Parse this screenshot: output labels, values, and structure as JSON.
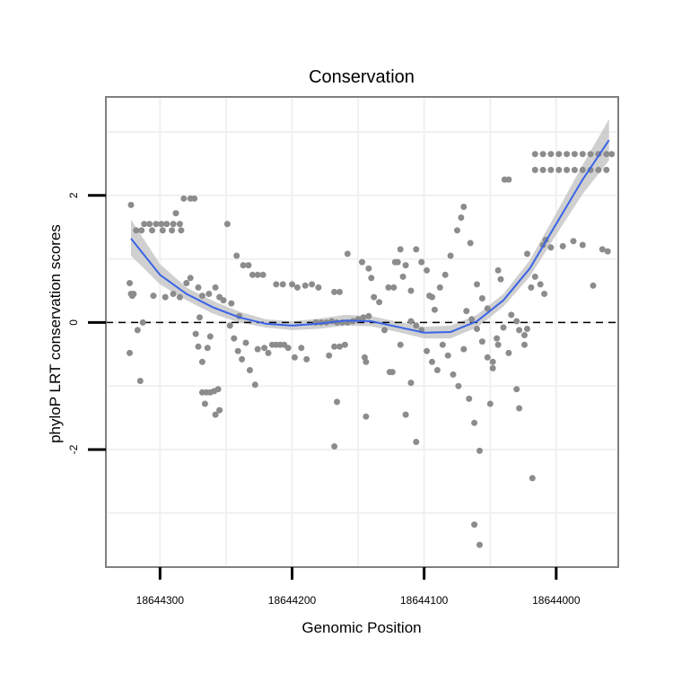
{
  "chart_data": {
    "type": "scatter",
    "title": "Conservation",
    "xlabel": "Genomic Position",
    "ylabel": "phyloP LRT conservation scores",
    "x_reversed": true,
    "xlim": [
      18644341,
      18643953
    ],
    "ylim": [
      -3.85,
      3.55
    ],
    "x_ticks": [
      18644300,
      18644200,
      18644100,
      18644000
    ],
    "y_ticks": [
      -2,
      0,
      2
    ],
    "grid": true,
    "reference_line": {
      "y": 0,
      "style": "dashed"
    },
    "colors": {
      "points": "#8c8c8c",
      "smooth_line": "#3a63e6",
      "ribbon": "#c8c8c8",
      "panel_border": "#808080",
      "grid": "#f0f0f0"
    },
    "points": [
      [
        18644322,
        1.85
      ],
      [
        18644323,
        0.62
      ],
      [
        18644322,
        0.45
      ],
      [
        18644321,
        0.42
      ],
      [
        18644320,
        0.45
      ],
      [
        18644323,
        -0.48
      ],
      [
        18644317,
        -0.12
      ],
      [
        18644315,
        -0.92
      ],
      [
        18644313,
        0.0
      ],
      [
        18644318,
        1.45
      ],
      [
        18644314,
        1.45
      ],
      [
        18644312,
        1.55
      ],
      [
        18644308,
        1.55
      ],
      [
        18644303,
        1.55
      ],
      [
        18644299,
        1.55
      ],
      [
        18644295,
        1.55
      ],
      [
        18644290,
        1.55
      ],
      [
        18644285,
        1.55
      ],
      [
        18644306,
        1.45
      ],
      [
        18644298,
        1.45
      ],
      [
        18644291,
        1.45
      ],
      [
        18644284,
        1.45
      ],
      [
        18644288,
        1.72
      ],
      [
        18644282,
        1.95
      ],
      [
        18644277,
        1.95
      ],
      [
        18644274,
        1.95
      ],
      [
        18644305,
        0.42
      ],
      [
        18644296,
        0.4
      ],
      [
        18644285,
        0.4
      ],
      [
        18644290,
        0.45
      ],
      [
        18644280,
        0.62
      ],
      [
        18644277,
        0.7
      ],
      [
        18644271,
        0.55
      ],
      [
        18644268,
        0.42
      ],
      [
        18644263,
        0.45
      ],
      [
        18644258,
        0.55
      ],
      [
        18644255,
        0.4
      ],
      [
        18644252,
        0.35
      ],
      [
        18644273,
        -0.18
      ],
      [
        18644271,
        -0.38
      ],
      [
        18644268,
        -0.62
      ],
      [
        18644264,
        -0.4
      ],
      [
        18644262,
        -0.22
      ],
      [
        18644270,
        0.08
      ],
      [
        18644268,
        -1.1
      ],
      [
        18644265,
        -1.1
      ],
      [
        18644262,
        -1.1
      ],
      [
        18644259,
        -1.08
      ],
      [
        18644256,
        -1.05
      ],
      [
        18644266,
        -1.28
      ],
      [
        18644258,
        -1.45
      ],
      [
        18644255,
        -1.38
      ],
      [
        18644249,
        1.55
      ],
      [
        18644246,
        0.3
      ],
      [
        18644242,
        1.05
      ],
      [
        18644240,
        0.1
      ],
      [
        18644237,
        0.9
      ],
      [
        18644233,
        0.9
      ],
      [
        18644230,
        0.75
      ],
      [
        18644226,
        0.75
      ],
      [
        18644222,
        0.75
      ],
      [
        18644212,
        0.6
      ],
      [
        18644207,
        0.6
      ],
      [
        18644200,
        0.6
      ],
      [
        18644196,
        0.55
      ],
      [
        18644190,
        0.58
      ],
      [
        18644185,
        0.6
      ],
      [
        18644180,
        0.55
      ],
      [
        18644247,
        -0.05
      ],
      [
        18644244,
        -0.25
      ],
      [
        18644241,
        -0.45
      ],
      [
        18644238,
        -0.58
      ],
      [
        18644235,
        -0.32
      ],
      [
        18644232,
        -0.75
      ],
      [
        18644228,
        -0.98
      ],
      [
        18644226,
        -0.42
      ],
      [
        18644221,
        -0.4
      ],
      [
        18644218,
        -0.48
      ],
      [
        18644215,
        -0.35
      ],
      [
        18644212,
        -0.35
      ],
      [
        18644209,
        -0.35
      ],
      [
        18644206,
        -0.35
      ],
      [
        18644203,
        -0.4
      ],
      [
        18644198,
        -0.55
      ],
      [
        18644193,
        -0.4
      ],
      [
        18644189,
        -0.58
      ],
      [
        18644182,
        0.0
      ],
      [
        18644178,
        0.0
      ],
      [
        18644174,
        0.0
      ],
      [
        18644170,
        0.02
      ],
      [
        18644166,
        0.0
      ],
      [
        18644162,
        0.0
      ],
      [
        18644158,
        0.0
      ],
      [
        18644154,
        0.02
      ],
      [
        18644150,
        0.05
      ],
      [
        18644146,
        0.08
      ],
      [
        18644142,
        0.1
      ],
      [
        18644168,
        0.48
      ],
      [
        18644164,
        0.48
      ],
      [
        18644158,
        1.08
      ],
      [
        18644147,
        0.95
      ],
      [
        18644142,
        0.85
      ],
      [
        18644140,
        0.7
      ],
      [
        18644138,
        0.4
      ],
      [
        18644172,
        -0.52
      ],
      [
        18644168,
        -0.38
      ],
      [
        18644164,
        -0.38
      ],
      [
        18644160,
        -0.35
      ],
      [
        18644166,
        -1.25
      ],
      [
        18644168,
        -1.95
      ],
      [
        18644145,
        -0.55
      ],
      [
        18644144,
        -0.62
      ],
      [
        18644144,
        -1.48
      ],
      [
        18644130,
        -0.12
      ],
      [
        18644126,
        -0.78
      ],
      [
        18644124,
        -0.78
      ],
      [
        18644118,
        -0.35
      ],
      [
        18644114,
        -1.45
      ],
      [
        18644110,
        -0.95
      ],
      [
        18644106,
        -1.88
      ],
      [
        18644134,
        0.32
      ],
      [
        18644127,
        0.55
      ],
      [
        18644123,
        0.55
      ],
      [
        18644122,
        0.95
      ],
      [
        18644120,
        0.95
      ],
      [
        18644118,
        1.15
      ],
      [
        18644116,
        0.72
      ],
      [
        18644114,
        0.9
      ],
      [
        18644110,
        0.5
      ],
      [
        18644106,
        1.15
      ],
      [
        18644102,
        0.95
      ],
      [
        18644098,
        0.82
      ],
      [
        18644096,
        0.42
      ],
      [
        18644094,
        0.4
      ],
      [
        18644092,
        0.2
      ],
      [
        18644088,
        0.55
      ],
      [
        18644084,
        0.75
      ],
      [
        18644080,
        1.05
      ],
      [
        18644075,
        1.45
      ],
      [
        18644072,
        1.65
      ],
      [
        18644070,
        1.82
      ],
      [
        18644065,
        1.25
      ],
      [
        18644060,
        0.6
      ],
      [
        18644056,
        0.38
      ],
      [
        18644052,
        0.22
      ],
      [
        18644110,
        0.02
      ],
      [
        18644106,
        -0.05
      ],
      [
        18644102,
        -0.12
      ],
      [
        18644098,
        -0.45
      ],
      [
        18644094,
        -0.62
      ],
      [
        18644090,
        -0.75
      ],
      [
        18644086,
        -0.35
      ],
      [
        18644082,
        -0.52
      ],
      [
        18644078,
        -0.82
      ],
      [
        18644074,
        -1.0
      ],
      [
        18644070,
        -0.42
      ],
      [
        18644068,
        0.18
      ],
      [
        18644064,
        0.05
      ],
      [
        18644060,
        -0.1
      ],
      [
        18644056,
        -0.3
      ],
      [
        18644052,
        -0.55
      ],
      [
        18644048,
        -0.72
      ],
      [
        18644044,
        -0.35
      ],
      [
        18644040,
        -0.08
      ],
      [
        18644036,
        -0.48
      ],
      [
        18644034,
        0.12
      ],
      [
        18644066,
        -1.2
      ],
      [
        18644062,
        -1.58
      ],
      [
        18644058,
        -2.02
      ],
      [
        18644062,
        -3.18
      ],
      [
        18644058,
        -3.5
      ],
      [
        18644050,
        -1.28
      ],
      [
        18644048,
        -0.62
      ],
      [
        18644045,
        -0.25
      ],
      [
        18644044,
        0.82
      ],
      [
        18644042,
        0.68
      ],
      [
        18644039,
        2.25
      ],
      [
        18644036,
        2.25
      ],
      [
        18644030,
        0.02
      ],
      [
        18644028,
        -0.12
      ],
      [
        18644024,
        -0.2
      ],
      [
        18644022,
        1.08
      ],
      [
        18644019,
        0.55
      ],
      [
        18644016,
        0.72
      ],
      [
        18644030,
        -1.05
      ],
      [
        18644028,
        -1.35
      ],
      [
        18644024,
        -0.35
      ],
      [
        18644022,
        -0.1
      ],
      [
        18644018,
        -2.45
      ],
      [
        18644012,
        0.6
      ],
      [
        18644009,
        0.45
      ],
      [
        18644010,
        1.22
      ],
      [
        18644008,
        1.3
      ],
      [
        18644004,
        1.18
      ],
      [
        18643995,
        1.2
      ],
      [
        18643987,
        1.28
      ],
      [
        18643980,
        1.22
      ],
      [
        18643972,
        0.58
      ],
      [
        18643965,
        1.15
      ],
      [
        18643961,
        1.12
      ],
      [
        18644016,
        2.65
      ],
      [
        18644010,
        2.65
      ],
      [
        18644004,
        2.65
      ],
      [
        18643998,
        2.65
      ],
      [
        18643992,
        2.65
      ],
      [
        18643986,
        2.65
      ],
      [
        18643980,
        2.65
      ],
      [
        18643974,
        2.65
      ],
      [
        18643968,
        2.65
      ],
      [
        18643962,
        2.65
      ],
      [
        18643958,
        2.65
      ],
      [
        18644016,
        2.4
      ],
      [
        18644010,
        2.4
      ],
      [
        18644004,
        2.4
      ],
      [
        18643998,
        2.4
      ],
      [
        18643992,
        2.4
      ],
      [
        18643986,
        2.4
      ],
      [
        18643980,
        2.4
      ],
      [
        18643974,
        2.4
      ],
      [
        18643968,
        2.4
      ],
      [
        18643962,
        2.4
      ]
    ],
    "smooth": [
      [
        18644322,
        1.32
      ],
      [
        18644300,
        0.75
      ],
      [
        18644280,
        0.45
      ],
      [
        18644260,
        0.24
      ],
      [
        18644240,
        0.08
      ],
      [
        18644220,
        -0.02
      ],
      [
        18644200,
        -0.05
      ],
      [
        18644180,
        -0.02
      ],
      [
        18644160,
        0.03
      ],
      [
        18644140,
        0.02
      ],
      [
        18644120,
        -0.07
      ],
      [
        18644100,
        -0.16
      ],
      [
        18644080,
        -0.15
      ],
      [
        18644060,
        0.02
      ],
      [
        18644040,
        0.35
      ],
      [
        18644020,
        0.85
      ],
      [
        18644000,
        1.55
      ],
      [
        18643980,
        2.25
      ],
      [
        18643960,
        2.87
      ]
    ],
    "ribbon": [
      [
        18644322,
        1.05,
        1.62
      ],
      [
        18644300,
        0.6,
        0.92
      ],
      [
        18644280,
        0.35,
        0.55
      ],
      [
        18644260,
        0.14,
        0.34
      ],
      [
        18644240,
        0.0,
        0.17
      ],
      [
        18644220,
        -0.08,
        0.05
      ],
      [
        18644200,
        -0.12,
        0.02
      ],
      [
        18644180,
        -0.1,
        0.06
      ],
      [
        18644160,
        -0.05,
        0.12
      ],
      [
        18644140,
        -0.06,
        0.1
      ],
      [
        18644120,
        -0.15,
        0.01
      ],
      [
        18644100,
        -0.25,
        -0.07
      ],
      [
        18644080,
        -0.25,
        -0.05
      ],
      [
        18644060,
        -0.08,
        0.12
      ],
      [
        18644040,
        0.25,
        0.45
      ],
      [
        18644020,
        0.72,
        0.98
      ],
      [
        18644000,
        1.38,
        1.72
      ],
      [
        18643980,
        2.02,
        2.48
      ],
      [
        18643960,
        2.55,
        3.2
      ]
    ]
  }
}
